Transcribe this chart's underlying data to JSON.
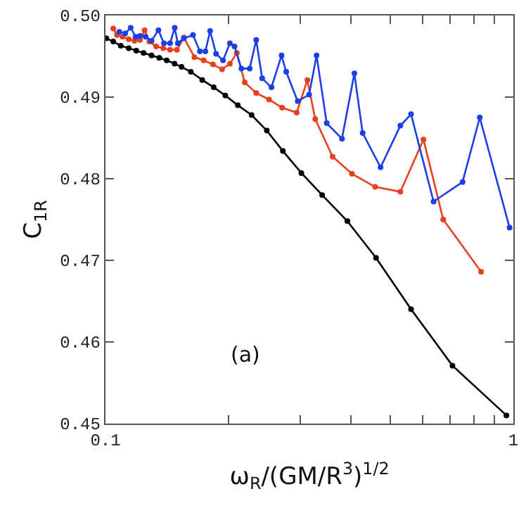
{
  "chart_data": {
    "type": "line",
    "xlabel": "ω$_{R}$/(GM/R$^{3}$)$^{1/2}$",
    "ylabel": "C$_{1R}$",
    "log": "x",
    "marker": "circle",
    "line_style": "solid",
    "annotations": [
      "(a)"
    ],
    "xlim": [
      0.1,
      1
    ],
    "xticks": [
      0.1,
      {
        "value": 0.2,
        "label": null
      },
      {
        "value": 0.3,
        "label": null
      },
      {
        "value": 0.4,
        "label": null
      },
      {
        "value": 0.5,
        "label": null
      },
      {
        "value": 0.6,
        "label": null
      },
      {
        "value": 0.7,
        "label": null
      },
      {
        "value": 0.8,
        "label": null
      },
      {
        "value": 0.9,
        "label": null
      },
      1
    ],
    "ylim": [
      0.45,
      0.5
    ],
    "yticks": [
      {
        "value": 0.45,
        "label": "0.45"
      },
      {
        "value": 0.46,
        "label": "0.46"
      },
      {
        "value": 0.47,
        "label": "0.47"
      },
      {
        "value": 0.48,
        "label": "0.48"
      },
      {
        "value": 0.49,
        "label": "0.49"
      },
      {
        "value": 0.5,
        "label": "0.50"
      }
    ],
    "series": [
      {
        "color": "#000000",
        "x": [
          0.1005,
          0.1045,
          0.109,
          0.114,
          0.119,
          0.124,
          0.1297,
          0.1355,
          0.1413,
          0.1477,
          0.1536,
          0.1619,
          0.1727,
          0.1842,
          0.1967,
          0.2111,
          0.2282,
          0.2486,
          0.2722,
          0.3022,
          0.3398,
          0.3918,
          0.4607,
          0.5613,
          0.7091,
          0.9618
        ],
        "values": [
          0.4972,
          0.4968,
          0.4963,
          0.496,
          0.4957,
          0.4954,
          0.4951,
          0.4948,
          0.4945,
          0.4941,
          0.4937,
          0.4931,
          0.4921,
          0.4912,
          0.4902,
          0.489,
          0.4878,
          0.4859,
          0.4834,
          0.4807,
          0.478,
          0.4748,
          0.4703,
          0.464,
          0.4571,
          0.451
        ]
      },
      {
        "color": "#e8401c",
        "x": [
          0.1045,
          0.1067,
          0.1101,
          0.114,
          0.1178,
          0.1215,
          0.1247,
          0.1281,
          0.1331,
          0.1385,
          0.144,
          0.1497,
          0.1557,
          0.1652,
          0.1741,
          0.1834,
          0.1931,
          0.2019,
          0.2099,
          0.2195,
          0.2342,
          0.2518,
          0.271,
          0.2943,
          0.3126,
          0.3268,
          0.3605,
          0.4021,
          0.4581,
          0.5285,
          0.6022,
          0.6731,
          0.8337
        ],
        "values": [
          0.4984,
          0.4976,
          0.4974,
          0.4971,
          0.4969,
          0.497,
          0.4982,
          0.4968,
          0.4962,
          0.496,
          0.4958,
          0.4958,
          0.4973,
          0.4949,
          0.4945,
          0.494,
          0.4934,
          0.4941,
          0.4954,
          0.4918,
          0.4905,
          0.4897,
          0.4887,
          0.4881,
          0.4921,
          0.4873,
          0.4827,
          0.4806,
          0.479,
          0.4784,
          0.4848,
          0.475,
          0.4686
        ]
      },
      {
        "color": "#1a3ee8",
        "x": [
          0.1081,
          0.1118,
          0.1153,
          0.1185,
          0.1215,
          0.1254,
          0.1297,
          0.1348,
          0.1391,
          0.144,
          0.1478,
          0.1504,
          0.1557,
          0.1639,
          0.1704,
          0.1758,
          0.1805,
          0.1867,
          0.1942,
          0.2019,
          0.2072,
          0.2154,
          0.2257,
          0.2342,
          0.2422,
          0.2552,
          0.2702,
          0.2774,
          0.2959,
          0.3157,
          0.3293,
          0.3487,
          0.38,
          0.4076,
          0.4271,
          0.4726,
          0.5285,
          0.5613,
          0.6374,
          0.7508,
          0.8272,
          0.9791
        ],
        "values": [
          0.498,
          0.4978,
          0.4985,
          0.4974,
          0.4975,
          0.4974,
          0.4969,
          0.4982,
          0.4966,
          0.4966,
          0.4985,
          0.4966,
          0.4972,
          0.4976,
          0.4956,
          0.4956,
          0.4981,
          0.4953,
          0.4945,
          0.4966,
          0.4962,
          0.4935,
          0.4935,
          0.497,
          0.4923,
          0.4912,
          0.4951,
          0.4931,
          0.4895,
          0.4903,
          0.4951,
          0.4868,
          0.4849,
          0.4929,
          0.4856,
          0.4814,
          0.4865,
          0.4879,
          0.4772,
          0.4796,
          0.4875,
          0.474
        ]
      }
    ]
  }
}
